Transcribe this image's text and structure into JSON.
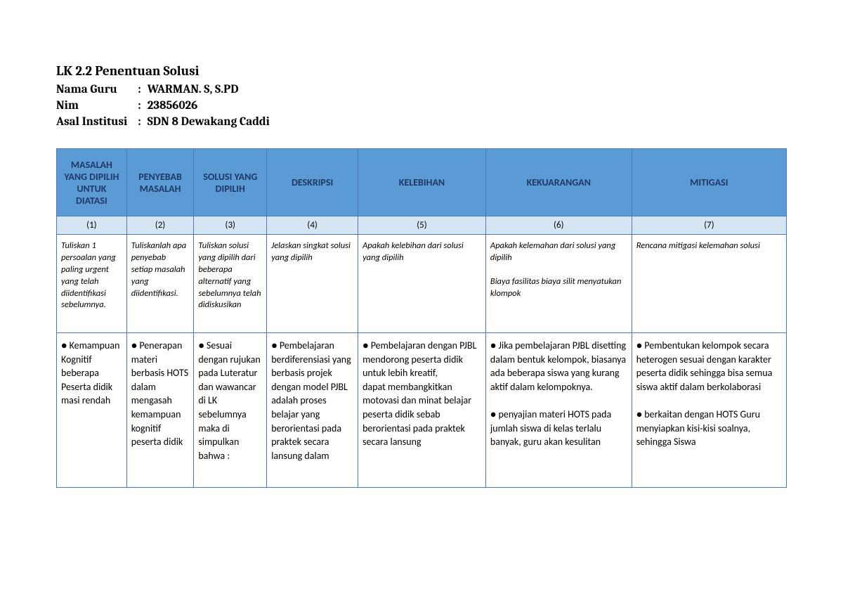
{
  "header": {
    "title": "LK 2.2 Penentuan Solusi",
    "meta": [
      {
        "label": "Nama Guru",
        "value": "WARMAN. S, S.PD"
      },
      {
        "label": "Nim",
        "value": "23856026"
      },
      {
        "label": "Asal Institusi",
        "value": "SDN 8 Dewakang Caddi"
      }
    ]
  },
  "table": {
    "columns": [
      {
        "header": "MASALAH YANG DIPILIH UNTUK DIATASI",
        "num": "(1)",
        "width": "9.6%"
      },
      {
        "header": "PENYEBAB MASALAH",
        "num": "(2)",
        "width": "9.2%"
      },
      {
        "header": "SOLUSI YANG DIPILIH",
        "num": "(3)",
        "width": "10%"
      },
      {
        "header": "DESKRIPSI",
        "num": "(4)",
        "width": "12.5%"
      },
      {
        "header": "KELEBIHAN",
        "num": "(5)",
        "width": "17.5%"
      },
      {
        "header": "KEKUARANGAN",
        "num": "(6)",
        "width": "20%"
      },
      {
        "header": "MITIGASI",
        "num": "(7)",
        "width": "21.2%"
      }
    ],
    "hints": [
      "Tuliskan 1 persoalan yang paling urgent yang telah diidentifikasi sebelumnya.",
      "Tuliskanlah apa penyebab setiap masalah yang diidentifikasi.",
      "Tuliskan solusi yang dipilih dari beberapa alternatif yang sebelumnya telah didiskusikan",
      "Jelaskan singkat solusi yang dipilih",
      "Apakah kelebihan dari solusi yang dipilih",
      "Apakah kelemahan dari solusi yang dipilih\n\nBiaya fasilitas biaya silit menyatukan klompok",
      "Rencana mitigasi kelemahan solusi"
    ],
    "content": [
      "● Kemampuan Kognitif beberapa\nPeserta didik masi rendah",
      "● Penerapan materi berbasis HOTS dalam mengasah kemampuan kognitif peserta didik",
      "● Sesuai dengan rujukan pada Luteratur dan wawancar di LK sebelumnya maka di simpulkan bahwa :",
      "● Pembelajaran berdiferensiasi yang berbasis projek dengan model PJBL adalah proses belajar yang berorientasi pada praktek secara lansung dalam",
      "● Pembelajaran dengan PJBL mendorong peserta didik untuk lebih kreatif,\ndapat membangkitkan motovasi dan minat belajar peserta didik sebab berorientasi pada praktek secara lansung",
      "● Jika pembelajaran PJBL disetting dalam bentuk kelompok, biasanya ada beberapa siswa yang kurang aktif dalam kelompoknya.\n\n● penyajian materi HOTS pada jumlah siswa di kelas terlalu banyak, guru akan kesulitan",
      "● Pembentukan kelompok secara heterogen sesuai dengan karakter peserta didik sehingga bisa semua siswa aktif dalam berkolaborasi\n\n● berkaitan dengan HOTS Guru menyiapkan  kisi-kisi soalnya, sehingga Siswa"
    ],
    "colors": {
      "header_bg": "#5b9bd5",
      "header_text": "#1f3864",
      "numrow_bg": "#d6e5f4",
      "border": "#4a7ab5",
      "body_bg": "#ffffff"
    }
  }
}
